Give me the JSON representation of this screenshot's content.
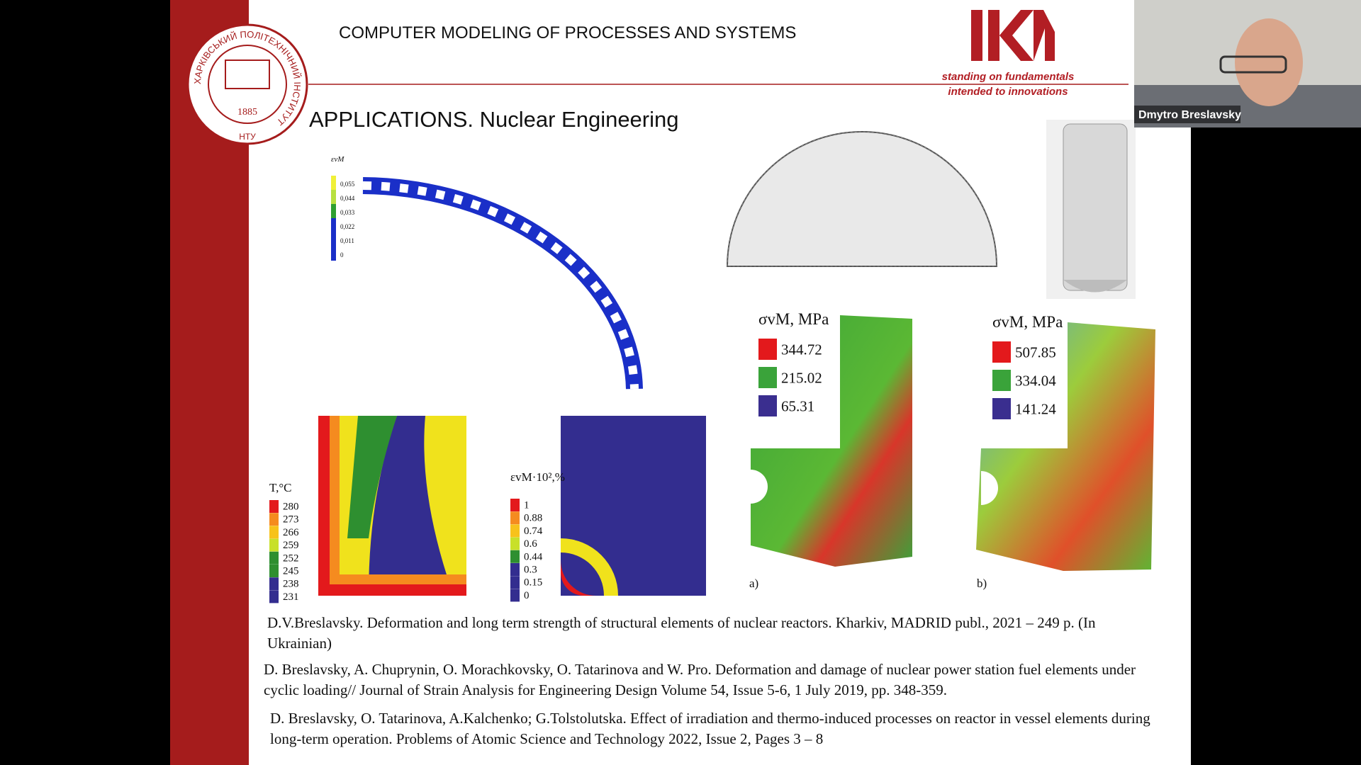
{
  "slide": {
    "header": "COMPUTER MODELING OF PROCESSES AND SYSTEMS",
    "tagline": [
      "standing on fundamentals",
      "intended to innovations"
    ],
    "seal": {
      "ring_text": "ХАРКІВСЬКИЙ ПОЛІТЕХНІЧНИЙ ІНСТИТУТ",
      "year": "1885",
      "short": "НТУ"
    },
    "heading": "APPLICATIONS.  Nuclear Engineering",
    "figures": {
      "strain_ring": {
        "label": "εvM",
        "scale": [
          "0,055",
          "0,044",
          "0,033",
          "0,022",
          "0,011",
          "0"
        ]
      },
      "temperature": {
        "label": "T,°C",
        "scale": [
          "280",
          "273",
          "266",
          "259",
          "252",
          "245",
          "238",
          "231"
        ]
      },
      "strain_corner": {
        "label": "εvM·10²,%",
        "scale": [
          "1",
          "0.88",
          "0.74",
          "0.6",
          "0.44",
          "0.3",
          "0.15",
          "0"
        ]
      },
      "stress_a": {
        "label": "σvM, MPa",
        "scale": [
          "344.72",
          "215.02",
          "65.31"
        ],
        "caption": "a)"
      },
      "stress_b": {
        "label": "σvM, MPa",
        "scale": [
          "507.85",
          "334.04",
          "141.24"
        ],
        "caption": "b)"
      }
    },
    "references": [
      "D.V.Breslavsky. Deformation and long term strength of structural elements of nuclear reactors. Kharkiv, MADRID publ., 2021 – 249 p. (In Ukrainian)",
      "D. Breslavsky, A. Chuprynin, O. Morachkovsky, O. Tatarinova and W. Pro. Deformation and damage of nuclear power station fuel elements under cyclic loading// Journal of Strain Analysis for Engineering Design Volume 54, Issue 5-6, 1 July 2019, pp. 348-359.",
      "D. Breslavsky, O. Tatarinova, A.Kalchenko; G.Tolstolutska. Effect of irradiation and thermo-induced processes on reactor in vessel elements during long-term operation. Problems of Atomic Science and Technology 2022, Issue 2, Pages 3 – 8"
    ]
  },
  "video": {
    "participant": "Dmytro Breslavsky"
  }
}
